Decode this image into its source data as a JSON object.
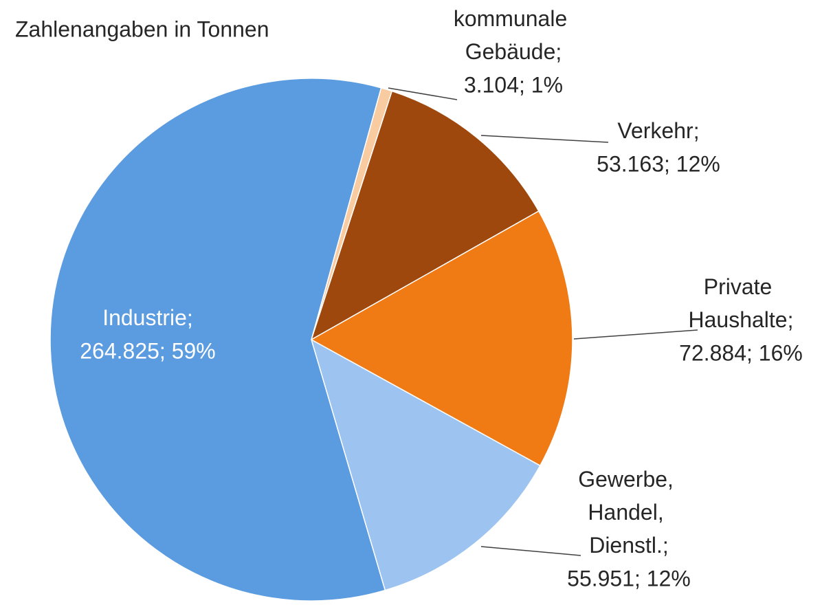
{
  "chart_data": {
    "type": "pie",
    "title": "Zahlenangaben in Tonnen",
    "categories": [
      "kommunale Gebäude",
      "Verkehr",
      "Private Haushalte",
      "Gewerbe, Handel, Dienstl.",
      "Industrie"
    ],
    "values": [
      3104,
      53163,
      72884,
      55951,
      264825
    ],
    "value_labels": [
      "3.104; 1%",
      "53.163; 12%",
      "72.884; 16%",
      "55.951; 12%",
      "264.825; 59%"
    ],
    "label_separator": ";",
    "colors": [
      "#f8cba0",
      "#9e480e",
      "#f07a14",
      "#9dc3f0",
      "#5b9be0"
    ]
  }
}
